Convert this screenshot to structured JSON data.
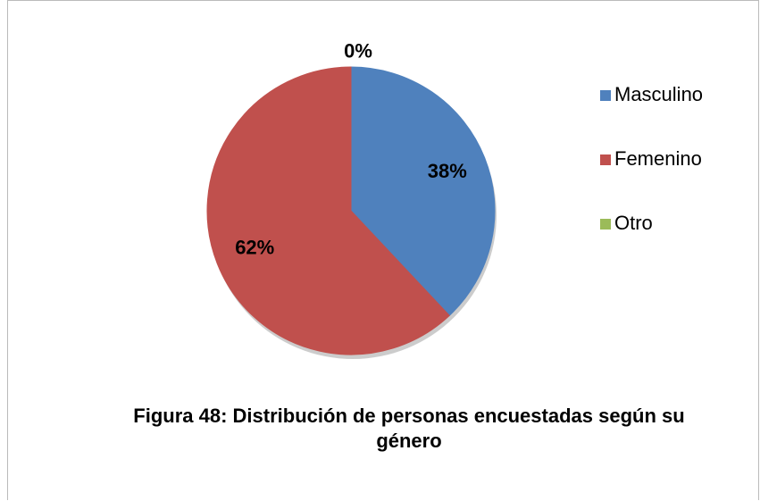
{
  "chart_data": {
    "type": "pie",
    "title": "Figura 48: Distribución de personas encuestadas según su género",
    "categories": [
      "Masculino",
      "Femenino",
      "Otro"
    ],
    "values": [
      38,
      62,
      0
    ],
    "value_labels": [
      "38%",
      "62%",
      "0%"
    ],
    "colors": [
      "#4f81bd",
      "#c0504d",
      "#9bbb59"
    ],
    "legend": "right"
  }
}
